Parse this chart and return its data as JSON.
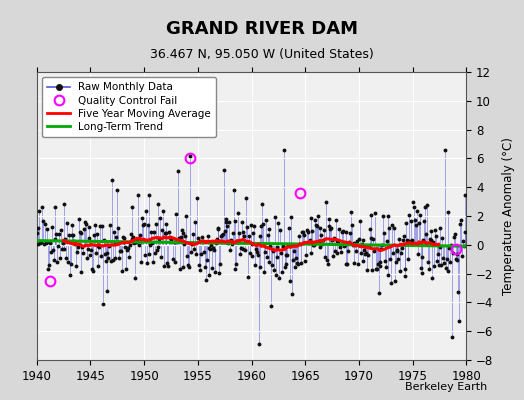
{
  "title": "GRAND RIVER DAM",
  "subtitle": "36.467 N, 95.050 W (United States)",
  "ylabel": "Temperature Anomaly (°C)",
  "xlabel_credit": "Berkeley Earth",
  "xlim": [
    1940,
    1980
  ],
  "ylim": [
    -8,
    12
  ],
  "yticks": [
    -8,
    -6,
    -4,
    -2,
    0,
    2,
    4,
    6,
    8,
    10,
    12
  ],
  "xticks": [
    1940,
    1945,
    1950,
    1955,
    1960,
    1965,
    1970,
    1975,
    1980
  ],
  "bg_color": "#d8d8d8",
  "plot_bg_color": "#f0f0f0",
  "grid_color": "white",
  "raw_line_color": "#5555dd",
  "raw_marker_color": "#111111",
  "moving_avg_color": "red",
  "trend_color": "#00aa00",
  "qc_fail_color": "magenta",
  "legend_entries": [
    "Raw Monthly Data",
    "Quality Control Fail",
    "Five Year Moving Average",
    "Long-Term Trend"
  ],
  "seed": 42,
  "start_year": 1940,
  "end_year": 1980,
  "qc_fail_points": [
    [
      1941.25,
      -2.5
    ],
    [
      1954.25,
      6.0
    ],
    [
      1964.5,
      3.6
    ],
    [
      1979.0,
      -0.3
    ]
  ]
}
